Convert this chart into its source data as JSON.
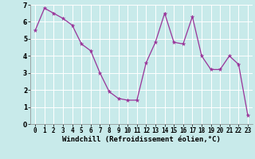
{
  "x": [
    0,
    1,
    2,
    3,
    4,
    5,
    6,
    7,
    8,
    9,
    10,
    11,
    12,
    13,
    14,
    15,
    16,
    17,
    18,
    19,
    20,
    21,
    22,
    23
  ],
  "y": [
    5.5,
    6.8,
    6.5,
    6.2,
    5.8,
    4.7,
    4.3,
    3.0,
    1.9,
    1.5,
    1.4,
    1.4,
    3.6,
    4.8,
    6.5,
    4.8,
    4.7,
    6.3,
    4.0,
    3.2,
    3.2,
    4.0,
    3.5,
    0.5
  ],
  "line_color": "#993399",
  "marker_color": "#993399",
  "bg_color": "#c8eaea",
  "grid_color": "#aad4d4",
  "xlabel": "Windchill (Refroidissement éolien,°C)",
  "ylim": [
    0,
    7
  ],
  "yticks": [
    0,
    1,
    2,
    3,
    4,
    5,
    6,
    7
  ],
  "xticks": [
    0,
    1,
    2,
    3,
    4,
    5,
    6,
    7,
    8,
    9,
    10,
    11,
    12,
    13,
    14,
    15,
    16,
    17,
    18,
    19,
    20,
    21,
    22,
    23
  ],
  "tick_fontsize": 5.5,
  "xlabel_fontsize": 6.5
}
